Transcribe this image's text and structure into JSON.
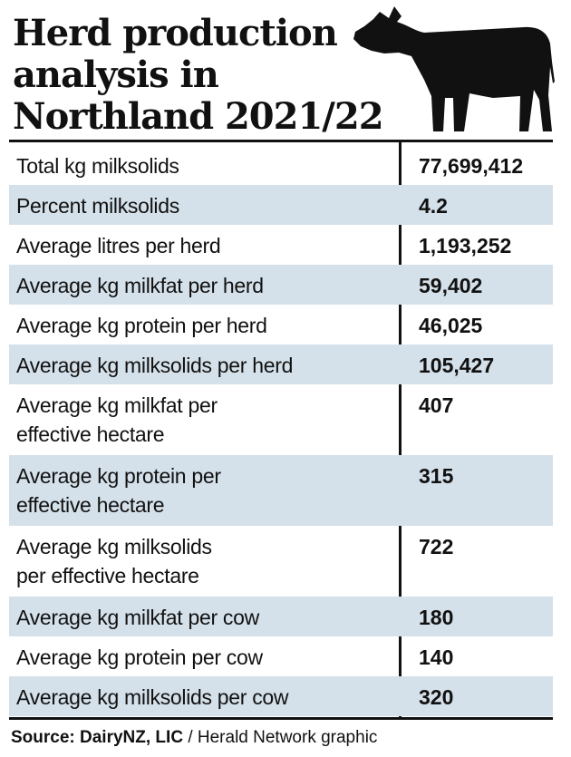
{
  "title_lines": [
    "Herd production",
    "analysis in",
    "Northland 2021/22"
  ],
  "rows": [
    {
      "label": "Total kg milksolids",
      "value": "77,699,412"
    },
    {
      "label": "Percent milksolids",
      "value": "4.2"
    },
    {
      "label": "Average litres per herd",
      "value": "1,193,252"
    },
    {
      "label": "Average kg milkfat per herd",
      "value": "59,402"
    },
    {
      "label": "Average kg protein per herd",
      "value": "46,025"
    },
    {
      "label": "Average kg milksolids per herd",
      "value": "105,427"
    },
    {
      "label_lines": [
        "Average kg milkfat per",
        "effective hectare"
      ],
      "value": "407"
    },
    {
      "label_lines": [
        "Average kg protein per",
        "effective hectare"
      ],
      "value": "315"
    },
    {
      "label_lines": [
        "Average kg milksolids",
        "per effective hectare"
      ],
      "value": "722"
    },
    {
      "label": "Average kg milkfat per cow",
      "value": "180"
    },
    {
      "label": "Average kg protein per cow",
      "value": "140"
    },
    {
      "label": "Average kg milksolids per cow",
      "value": "320"
    }
  ],
  "source": {
    "bold": "Source: DairyNZ, LIC",
    "rest": " / Herald Network graphic"
  },
  "icon": "cow-silhouette-icon",
  "colors": {
    "shade": "#d5e1ea",
    "ink": "#111111"
  }
}
